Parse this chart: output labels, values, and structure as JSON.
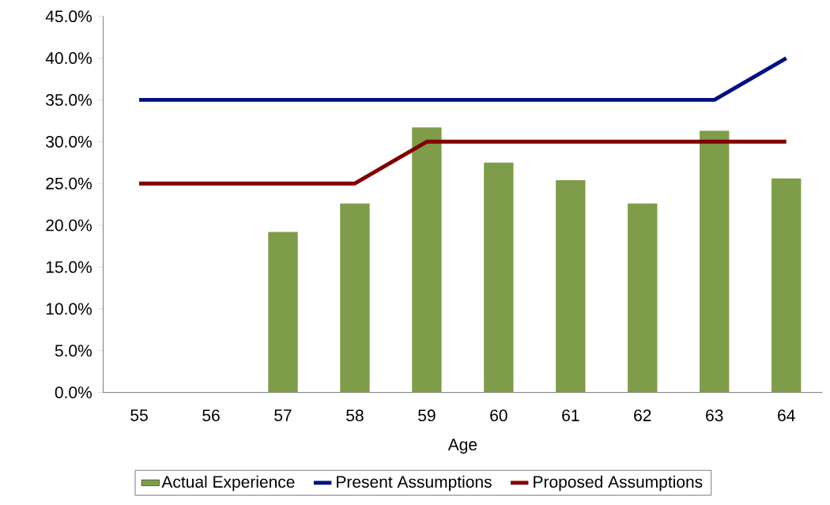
{
  "chart_data": {
    "type": "bar",
    "xlabel": "Age",
    "categories": [
      "55",
      "56",
      "57",
      "58",
      "59",
      "60",
      "61",
      "62",
      "63",
      "64"
    ],
    "series": [
      {
        "name": "Actual Experience",
        "type": "bar",
        "color": "#7f9c4a",
        "values": [
          null,
          null,
          19.2,
          22.6,
          31.7,
          27.5,
          25.4,
          22.6,
          31.3,
          25.6
        ]
      },
      {
        "name": "Present Assumptions",
        "type": "line",
        "color": "#001080",
        "values": [
          35,
          35,
          35,
          35,
          35,
          35,
          35,
          35,
          35,
          40
        ]
      },
      {
        "name": "Proposed Assumptions",
        "type": "line",
        "color": "#800000",
        "values": [
          25,
          25,
          25,
          25,
          30,
          30,
          30,
          30,
          30,
          30
        ]
      }
    ],
    "ylim": [
      0,
      45
    ],
    "yticks": [
      {
        "value": 0,
        "label": "0.0%"
      },
      {
        "value": 5,
        "label": "5.0%"
      },
      {
        "value": 10,
        "label": "10.0%"
      },
      {
        "value": 15,
        "label": "15.0%"
      },
      {
        "value": 20,
        "label": "20.0%"
      },
      {
        "value": 25,
        "label": "25.0%"
      },
      {
        "value": 30,
        "label": "30.0%"
      },
      {
        "value": 35,
        "label": "35.0%"
      },
      {
        "value": 40,
        "label": "40.0%"
      },
      {
        "value": 45,
        "label": "45.0%"
      }
    ],
    "grid": false,
    "legend": "bottom"
  }
}
